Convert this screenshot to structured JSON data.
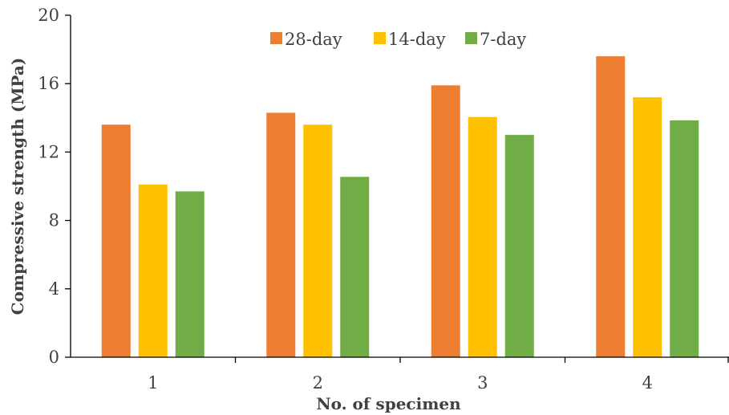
{
  "chart_data": {
    "type": "bar",
    "categories": [
      "1",
      "2",
      "3",
      "4"
    ],
    "series": [
      {
        "name": "28-day",
        "color": "#ED7D31",
        "values": [
          13.6,
          14.3,
          15.9,
          17.6
        ]
      },
      {
        "name": "14-day",
        "color": "#FFC000",
        "values": [
          10.1,
          13.6,
          14.05,
          15.2
        ]
      },
      {
        "name": "7-day",
        "color": "#70AD47",
        "values": [
          9.7,
          10.55,
          13.0,
          13.85
        ]
      }
    ],
    "title": "",
    "xlabel": "No. of specimen",
    "ylabel": "Compressive strength (MPa)",
    "ylim": [
      0,
      20
    ],
    "yticks": [
      "0",
      "4",
      "8",
      "12",
      "16",
      "20"
    ],
    "grid": false,
    "legend_position": "top-center"
  }
}
